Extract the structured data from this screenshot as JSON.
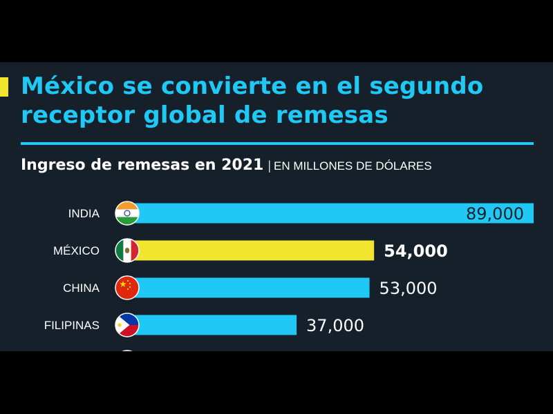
{
  "header": {
    "title_line1": "México se convierte en el segundo",
    "title_line2": "receptor global de remesas",
    "subtitle": "Ingreso de remesas en 2021",
    "separator": "|",
    "unit": "EN MILLONES DE DÓLARES"
  },
  "colors": {
    "bar_default": "#1fc8f5",
    "bar_highlight": "#f2e52d",
    "background": "#16202b",
    "title": "#1fc8f5"
  },
  "chart_data": {
    "type": "bar",
    "orientation": "horizontal",
    "categories": [
      "INDIA",
      "MÉXICO",
      "CHINA",
      "FILIPINAS"
    ],
    "values": [
      89000,
      54000,
      53000,
      37000
    ],
    "value_labels": [
      "89,000",
      "54,000",
      "53,000",
      "37,000"
    ],
    "highlight": "MÉXICO",
    "flags": [
      "india-flag-icon",
      "mexico-flag-icon",
      "china-flag-icon",
      "philippines-flag-icon"
    ],
    "xlim": [
      0,
      89000
    ],
    "unit": "EN MILLONES DE DÓLARES"
  }
}
